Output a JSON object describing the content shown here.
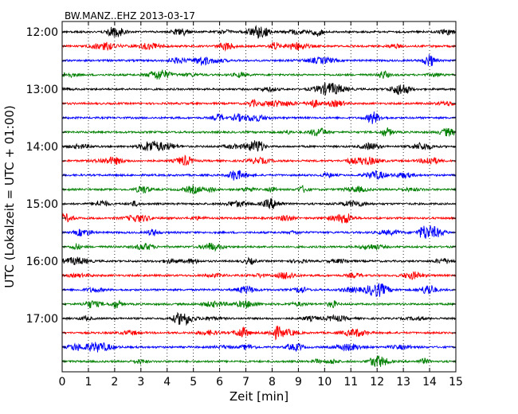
{
  "chart_data": {
    "type": "line",
    "title": "BW.MANZ..EHZ 2013-03-17",
    "xlabel": "Zeit  [min]",
    "ylabel": "UTC (Lokalzeit = UTC + 01:00)",
    "xlim": [
      0,
      15
    ],
    "x_ticks": [
      "0",
      "1",
      "2",
      "3",
      "4",
      "5",
      "6",
      "7",
      "8",
      "9",
      "10",
      "11",
      "12",
      "13",
      "14",
      "15"
    ],
    "y_ticks": [
      "12:00",
      "13:00",
      "14:00",
      "15:00",
      "16:00",
      "17:00"
    ],
    "grid": "vertical dotted",
    "trace_colors": [
      "#000000",
      "#ff0000",
      "#0000ff",
      "#008000"
    ],
    "traces": [
      {
        "start": "12:00"
      },
      {
        "start": "12:15"
      },
      {
        "start": "12:30"
      },
      {
        "start": "12:45"
      },
      {
        "start": "13:00"
      },
      {
        "start": "13:15"
      },
      {
        "start": "13:30"
      },
      {
        "start": "13:45"
      },
      {
        "start": "14:00"
      },
      {
        "start": "14:15"
      },
      {
        "start": "14:30"
      },
      {
        "start": "14:45"
      },
      {
        "start": "15:00"
      },
      {
        "start": "15:15"
      },
      {
        "start": "15:30"
      },
      {
        "start": "15:45"
      },
      {
        "start": "16:00"
      },
      {
        "start": "16:15"
      },
      {
        "start": "16:30"
      },
      {
        "start": "16:45"
      },
      {
        "start": "17:00"
      },
      {
        "start": "17:15"
      },
      {
        "start": "17:30"
      },
      {
        "start": "17:45"
      }
    ]
  }
}
